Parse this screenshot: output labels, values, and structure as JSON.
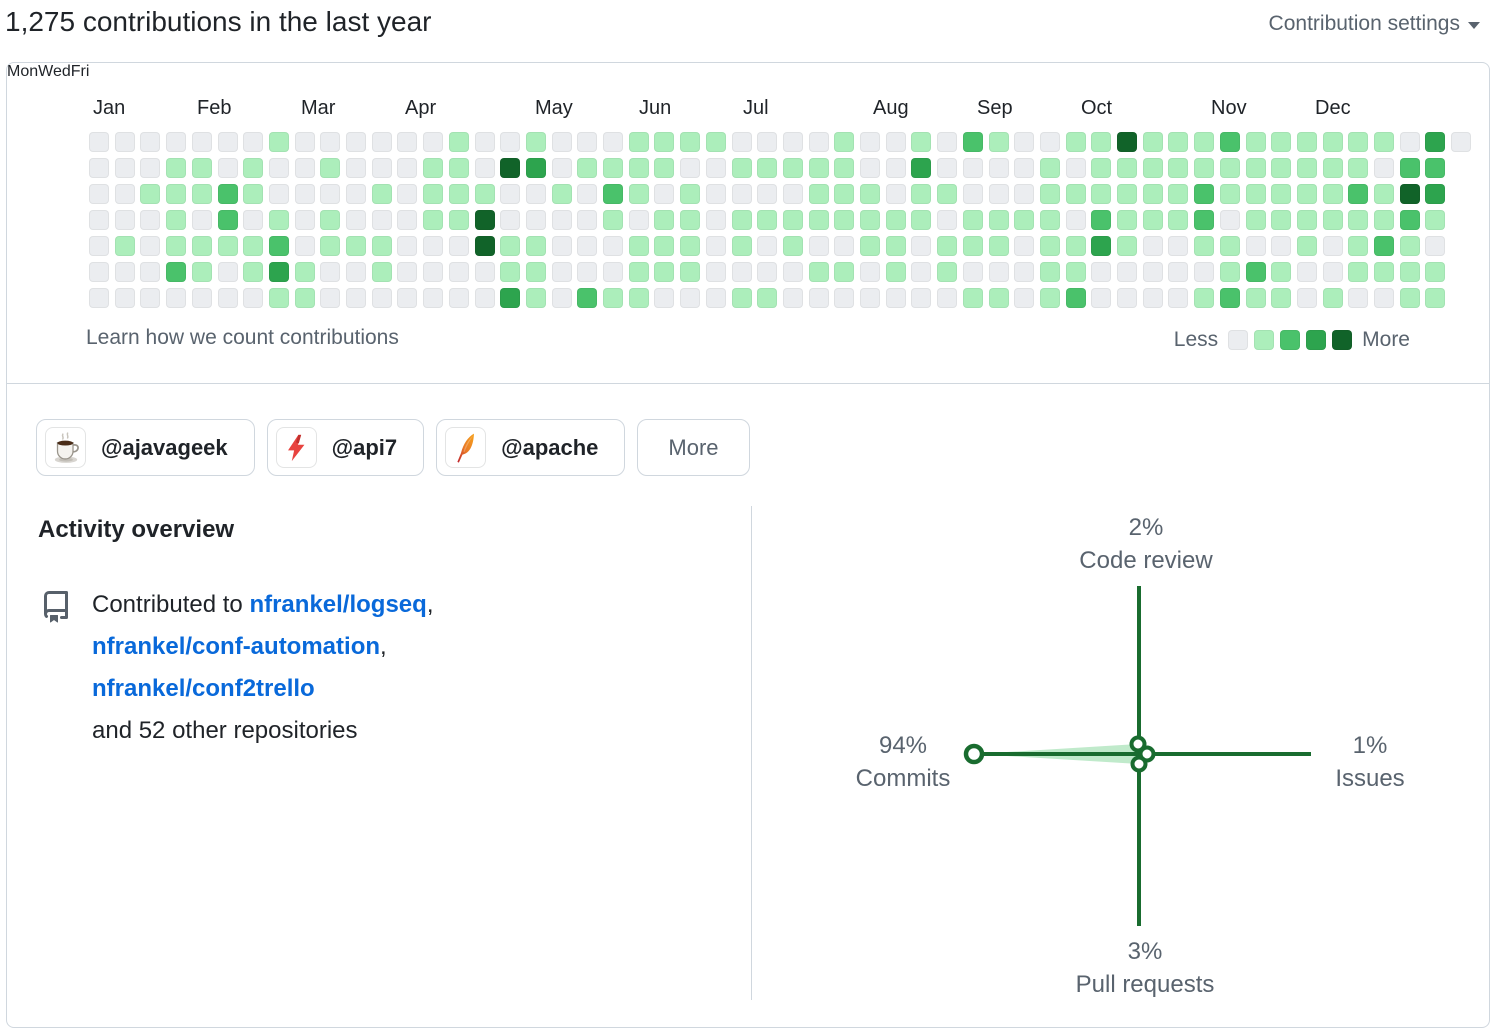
{
  "header": {
    "title": "1,275 contributions in the last year",
    "settings_label": "Contribution settings"
  },
  "heatmap": {
    "months": [
      {
        "label": "Jan",
        "col": 0
      },
      {
        "label": "Feb",
        "col": 4
      },
      {
        "label": "Mar",
        "col": 8
      },
      {
        "label": "Apr",
        "col": 12
      },
      {
        "label": "May",
        "col": 17
      },
      {
        "label": "Jun",
        "col": 21
      },
      {
        "label": "Jul",
        "col": 25
      },
      {
        "label": "Aug",
        "col": 30
      },
      {
        "label": "Sep",
        "col": 34
      },
      {
        "label": "Oct",
        "col": 38
      },
      {
        "label": "Nov",
        "col": 43
      },
      {
        "label": "Dec",
        "col": 47
      }
    ],
    "day_labels": [
      {
        "label": "Mon",
        "row": 1
      },
      {
        "label": "Wed",
        "row": 3
      },
      {
        "label": "Fri",
        "row": 5
      }
    ],
    "footer_link": "Learn how we count contributions",
    "legend": {
      "less_label": "Less",
      "more_label": "More"
    },
    "level_colors": [
      "#ebedf0",
      "#aceebb",
      "#4ac26b",
      "#2da44e",
      "#116329"
    ],
    "weeks": [
      [
        0,
        0,
        0,
        0,
        0,
        0,
        0
      ],
      [
        0,
        0,
        0,
        0,
        1,
        0,
        0
      ],
      [
        0,
        0,
        1,
        0,
        0,
        0,
        0
      ],
      [
        0,
        1,
        1,
        1,
        1,
        2,
        0
      ],
      [
        0,
        1,
        1,
        0,
        1,
        1,
        0
      ],
      [
        0,
        0,
        2,
        2,
        1,
        0,
        0
      ],
      [
        0,
        1,
        1,
        0,
        1,
        1,
        0
      ],
      [
        1,
        0,
        0,
        1,
        2,
        3,
        1
      ],
      [
        0,
        0,
        0,
        0,
        0,
        1,
        1
      ],
      [
        0,
        1,
        0,
        1,
        1,
        0,
        0
      ],
      [
        0,
        0,
        0,
        0,
        1,
        0,
        0
      ],
      [
        0,
        0,
        1,
        0,
        1,
        1,
        0
      ],
      [
        0,
        0,
        0,
        0,
        0,
        0,
        0
      ],
      [
        0,
        1,
        1,
        1,
        0,
        0,
        0
      ],
      [
        1,
        1,
        1,
        1,
        0,
        0,
        0
      ],
      [
        0,
        0,
        1,
        4,
        4,
        0,
        0
      ],
      [
        0,
        4,
        0,
        0,
        1,
        1,
        3
      ],
      [
        1,
        3,
        0,
        0,
        1,
        1,
        1
      ],
      [
        0,
        0,
        1,
        0,
        0,
        0,
        0
      ],
      [
        0,
        1,
        0,
        0,
        0,
        0,
        2
      ],
      [
        0,
        1,
        2,
        1,
        0,
        0,
        1
      ],
      [
        1,
        1,
        1,
        0,
        1,
        1,
        1
      ],
      [
        1,
        1,
        0,
        1,
        1,
        1,
        0
      ],
      [
        1,
        0,
        1,
        1,
        1,
        1,
        0
      ],
      [
        1,
        0,
        0,
        0,
        0,
        0,
        0
      ],
      [
        0,
        1,
        0,
        1,
        1,
        0,
        1
      ],
      [
        0,
        1,
        0,
        1,
        0,
        0,
        1
      ],
      [
        0,
        1,
        0,
        1,
        1,
        0,
        0
      ],
      [
        0,
        1,
        1,
        1,
        0,
        1,
        0
      ],
      [
        1,
        1,
        1,
        1,
        0,
        1,
        0
      ],
      [
        0,
        0,
        1,
        1,
        1,
        0,
        0
      ],
      [
        0,
        0,
        0,
        1,
        1,
        1,
        0
      ],
      [
        1,
        3,
        1,
        1,
        0,
        0,
        0
      ],
      [
        0,
        0,
        1,
        0,
        1,
        1,
        0
      ],
      [
        2,
        0,
        0,
        1,
        1,
        0,
        1
      ],
      [
        1,
        0,
        0,
        1,
        1,
        0,
        1
      ],
      [
        0,
        0,
        0,
        1,
        0,
        0,
        0
      ],
      [
        0,
        1,
        1,
        1,
        1,
        1,
        1
      ],
      [
        1,
        0,
        1,
        0,
        1,
        1,
        2
      ],
      [
        1,
        1,
        1,
        2,
        3,
        0,
        0
      ],
      [
        4,
        1,
        1,
        1,
        1,
        0,
        0
      ],
      [
        1,
        1,
        1,
        1,
        0,
        0,
        0
      ],
      [
        1,
        1,
        1,
        1,
        0,
        0,
        0
      ],
      [
        1,
        1,
        2,
        2,
        1,
        0,
        1
      ],
      [
        2,
        1,
        1,
        0,
        1,
        1,
        2
      ],
      [
        1,
        1,
        1,
        1,
        0,
        2,
        1
      ],
      [
        1,
        1,
        1,
        1,
        0,
        1,
        1
      ],
      [
        1,
        1,
        1,
        1,
        1,
        0,
        0
      ],
      [
        1,
        1,
        1,
        1,
        0,
        0,
        1
      ],
      [
        1,
        1,
        2,
        1,
        1,
        1,
        0
      ],
      [
        1,
        0,
        1,
        1,
        2,
        1,
        0
      ],
      [
        0,
        2,
        4,
        2,
        1,
        1,
        1
      ],
      [
        3,
        2,
        3,
        1,
        0,
        1,
        1
      ],
      [
        0
      ]
    ]
  },
  "orgs": [
    {
      "label": "@ajavageek",
      "icon": "coffee-cup-icon"
    },
    {
      "label": "@api7",
      "icon": "lightning-bolt-icon"
    },
    {
      "label": "@apache",
      "icon": "feather-icon"
    }
  ],
  "orgs_more_label": "More",
  "activity": {
    "heading": "Activity overview",
    "prefix": "Contributed to ",
    "repos": [
      "nfrankel/logseq",
      "nfrankel/conf-automation",
      "nfrankel/conf2trello"
    ],
    "comma": ",",
    "suffix": "and 52 other repositories"
  },
  "chart_data": {
    "type": "radar",
    "title": "Activity overview distribution",
    "axes": [
      {
        "label": "Code review",
        "percent": 2,
        "percent_label": "2%",
        "position": "top"
      },
      {
        "label": "Issues",
        "percent": 1,
        "percent_label": "1%",
        "position": "right"
      },
      {
        "label": "Pull requests",
        "percent": 3,
        "percent_label": "3%",
        "position": "bottom"
      },
      {
        "label": "Commits",
        "percent": 94,
        "percent_label": "94%",
        "position": "left"
      }
    ],
    "axis_color": "#196c2f",
    "fill_color": "rgba(74,194,107,0.35)"
  }
}
